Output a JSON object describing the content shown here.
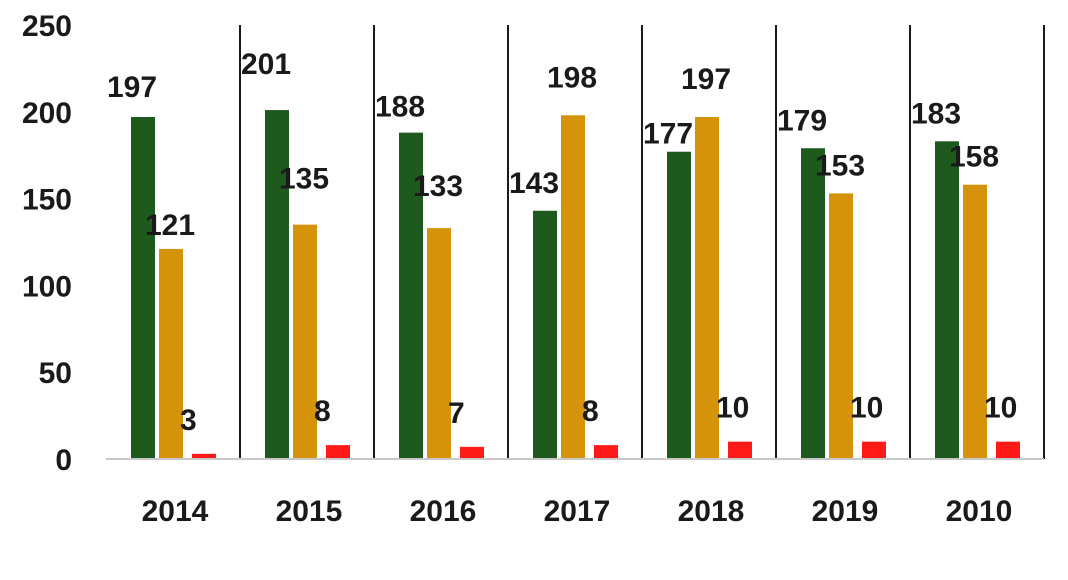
{
  "chart_data": {
    "type": "bar",
    "title": "",
    "xlabel": "",
    "ylabel": "",
    "ylim": [
      0,
      250
    ],
    "yticks": [
      0,
      50,
      100,
      150,
      200,
      250
    ],
    "grid": false,
    "legend": "none",
    "categories": [
      "2014",
      "2015",
      "2016",
      "2017",
      "2018",
      "2019",
      "2010"
    ],
    "series": [
      {
        "color": "#1e5a1e",
        "values": [
          197,
          201,
          188,
          143,
          177,
          179,
          183
        ]
      },
      {
        "color": "#d4930a",
        "values": [
          121,
          135,
          133,
          198,
          197,
          153,
          158
        ]
      },
      {
        "color": "#ff1a1a",
        "values": [
          3,
          8,
          7,
          8,
          10,
          10,
          10
        ]
      }
    ]
  }
}
